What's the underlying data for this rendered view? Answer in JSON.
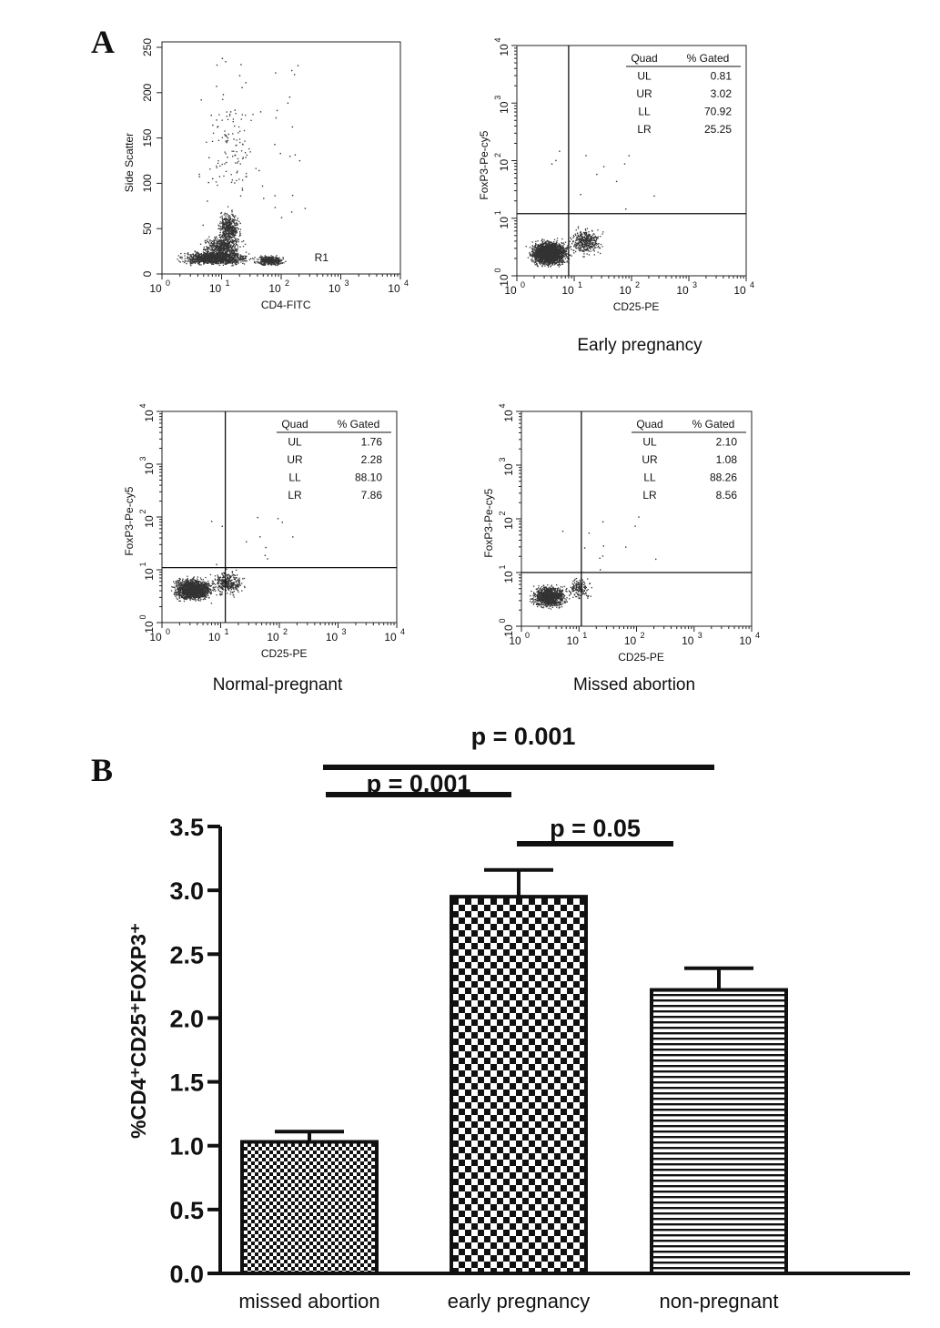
{
  "panel_a_label": "A",
  "panel_b_label": "B",
  "chart_data": [
    {
      "type": "scatter",
      "id": "side-scatter",
      "xlabel": "CD4-FITC",
      "ylabel": "Side Scatter",
      "x_scale": "log",
      "xlim": [
        1,
        10000
      ],
      "ylim": [
        0,
        256
      ],
      "x_ticks": [
        "10",
        "10",
        "10",
        "10",
        "10"
      ],
      "x_tick_exponents": [
        "0",
        "1",
        "2",
        "3",
        "4"
      ],
      "y_ticks": [
        "0",
        "50",
        "100",
        "150",
        "200",
        "250"
      ],
      "gate_label": "R1",
      "caption": ""
    },
    {
      "type": "scatter",
      "id": "early-pregnancy",
      "xlabel": "CD25-PE",
      "ylabel": "FoxP3-Pe-cy5",
      "x_scale": "log",
      "y_scale": "log",
      "xlim": [
        1,
        10000
      ],
      "ylim": [
        1,
        10000
      ],
      "x_ticks": [
        "10",
        "10",
        "10",
        "10",
        "10"
      ],
      "x_tick_exponents": [
        "0",
        "1",
        "2",
        "3",
        "4"
      ],
      "y_ticks": [
        "10",
        "10",
        "10",
        "10",
        "10"
      ],
      "y_tick_exponents": [
        "0",
        "1",
        "2",
        "3",
        "4"
      ],
      "quadrant_x": 8,
      "quadrant_y": 12,
      "table_header": [
        "Quad",
        "% Gated"
      ],
      "quadrants": [
        {
          "quad": "UL",
          "gated": "0.81"
        },
        {
          "quad": "UR",
          "gated": "3.02"
        },
        {
          "quad": "LL",
          "gated": "70.92"
        },
        {
          "quad": "LR",
          "gated": "25.25"
        }
      ],
      "caption": "Early pregnancy"
    },
    {
      "type": "scatter",
      "id": "normal-pregnant",
      "xlabel": "CD25-PE",
      "ylabel": "FoxP3-Pe-cy5",
      "x_scale": "log",
      "y_scale": "log",
      "xlim": [
        1,
        10000
      ],
      "ylim": [
        1,
        10000
      ],
      "x_ticks": [
        "10",
        "10",
        "10",
        "10",
        "10"
      ],
      "x_tick_exponents": [
        "0",
        "1",
        "2",
        "3",
        "4"
      ],
      "y_ticks": [
        "10",
        "10",
        "10",
        "10",
        "10"
      ],
      "y_tick_exponents": [
        "0",
        "1",
        "2",
        "3",
        "4"
      ],
      "quadrant_x": 12,
      "quadrant_y": 11,
      "table_header": [
        "Quad",
        "% Gated"
      ],
      "quadrants": [
        {
          "quad": "UL",
          "gated": "1.76"
        },
        {
          "quad": "UR",
          "gated": "2.28"
        },
        {
          "quad": "LL",
          "gated": "88.10"
        },
        {
          "quad": "LR",
          "gated": "7.86"
        }
      ],
      "caption": "Normal-pregnant"
    },
    {
      "type": "scatter",
      "id": "missed-abortion",
      "xlabel": "CD25-PE",
      "ylabel": "FoxP3-Pe-cy5",
      "x_scale": "log",
      "y_scale": "log",
      "xlim": [
        1,
        10000
      ],
      "ylim": [
        1,
        10000
      ],
      "x_ticks": [
        "10",
        "10",
        "10",
        "10",
        "10"
      ],
      "x_tick_exponents": [
        "0",
        "1",
        "2",
        "3",
        "4"
      ],
      "y_ticks": [
        "10",
        "10",
        "10",
        "10",
        "10"
      ],
      "y_tick_exponents": [
        "0",
        "1",
        "2",
        "3",
        "4"
      ],
      "quadrant_x": 11,
      "quadrant_y": 10,
      "table_header": [
        "Quad",
        "% Gated"
      ],
      "quadrants": [
        {
          "quad": "UL",
          "gated": "2.10"
        },
        {
          "quad": "UR",
          "gated": "1.08"
        },
        {
          "quad": "LL",
          "gated": "88.26"
        },
        {
          "quad": "LR",
          "gated": "8.56"
        }
      ],
      "caption": "Missed abortion"
    },
    {
      "type": "bar",
      "id": "treg-bar",
      "categories": [
        "missed abortion",
        "early pregnancy",
        "non-pregnant"
      ],
      "values": [
        1.03,
        2.95,
        2.22
      ],
      "errors": [
        0.08,
        0.21,
        0.17
      ],
      "patterns": [
        "fine-checker",
        "coarse-checker",
        "horizontal-stripes"
      ],
      "ylabel": "%CD4⁺CD25⁺FOXP3⁺",
      "ylim": [
        0,
        3.5
      ],
      "y_ticks": [
        "0.0",
        "0.5",
        "1.0",
        "1.5",
        "2.0",
        "2.5",
        "3.0",
        "3.5"
      ],
      "annotations": [
        {
          "text": "p = 0.001",
          "from": 0,
          "to": 2
        },
        {
          "text": "p = 0.001",
          "from": 0,
          "to": 1
        },
        {
          "text": "p = 0.05",
          "from": 1,
          "to": 2
        }
      ]
    }
  ]
}
